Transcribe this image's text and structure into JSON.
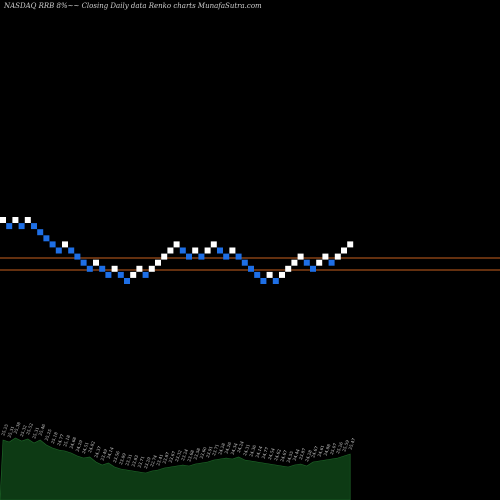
{
  "chart_data": {
    "type": "renko",
    "title": "NASDAQ RRB 8%~~ Closing Daily data Renko charts MunafaSutra.com",
    "xlabel": "",
    "ylabel": "",
    "bricks": [
      {
        "dir": "up",
        "y": 40
      },
      {
        "dir": "down",
        "y": 39
      },
      {
        "dir": "up",
        "y": 40
      },
      {
        "dir": "down",
        "y": 39
      },
      {
        "dir": "up",
        "y": 40
      },
      {
        "dir": "down",
        "y": 39
      },
      {
        "dir": "down",
        "y": 38
      },
      {
        "dir": "down",
        "y": 37
      },
      {
        "dir": "down",
        "y": 36
      },
      {
        "dir": "down",
        "y": 35
      },
      {
        "dir": "up",
        "y": 36
      },
      {
        "dir": "down",
        "y": 35
      },
      {
        "dir": "down",
        "y": 34
      },
      {
        "dir": "down",
        "y": 33
      },
      {
        "dir": "down",
        "y": 32
      },
      {
        "dir": "up",
        "y": 33
      },
      {
        "dir": "down",
        "y": 32
      },
      {
        "dir": "down",
        "y": 31
      },
      {
        "dir": "up",
        "y": 32
      },
      {
        "dir": "down",
        "y": 31
      },
      {
        "dir": "down",
        "y": 30
      },
      {
        "dir": "up",
        "y": 31
      },
      {
        "dir": "up",
        "y": 32
      },
      {
        "dir": "down",
        "y": 31
      },
      {
        "dir": "up",
        "y": 32
      },
      {
        "dir": "up",
        "y": 33
      },
      {
        "dir": "up",
        "y": 34
      },
      {
        "dir": "up",
        "y": 35
      },
      {
        "dir": "up",
        "y": 36
      },
      {
        "dir": "down",
        "y": 35
      },
      {
        "dir": "down",
        "y": 34
      },
      {
        "dir": "up",
        "y": 35
      },
      {
        "dir": "down",
        "y": 34
      },
      {
        "dir": "up",
        "y": 35
      },
      {
        "dir": "up",
        "y": 36
      },
      {
        "dir": "down",
        "y": 35
      },
      {
        "dir": "down",
        "y": 34
      },
      {
        "dir": "up",
        "y": 35
      },
      {
        "dir": "down",
        "y": 34
      },
      {
        "dir": "down",
        "y": 33
      },
      {
        "dir": "down",
        "y": 32
      },
      {
        "dir": "down",
        "y": 31
      },
      {
        "dir": "down",
        "y": 30
      },
      {
        "dir": "up",
        "y": 31
      },
      {
        "dir": "down",
        "y": 30
      },
      {
        "dir": "up",
        "y": 31
      },
      {
        "dir": "up",
        "y": 32
      },
      {
        "dir": "up",
        "y": 33
      },
      {
        "dir": "up",
        "y": 34
      },
      {
        "dir": "down",
        "y": 33
      },
      {
        "dir": "down",
        "y": 32
      },
      {
        "dir": "up",
        "y": 33
      },
      {
        "dir": "up",
        "y": 34
      },
      {
        "dir": "down",
        "y": 33
      },
      {
        "dir": "up",
        "y": 34
      },
      {
        "dir": "up",
        "y": 35
      },
      {
        "dir": "up",
        "y": 36
      }
    ],
    "reference_lines": [
      258,
      270
    ],
    "volume_labels": [
      "25.25",
      "25.31",
      "25.38",
      "25.32",
      "25.52",
      "25.31",
      "25.46",
      "25.25",
      "25.18",
      "24.77",
      "25.18",
      "24.68",
      "24.29",
      "24.51",
      "24.82",
      "24.37",
      "23.49",
      "24.14",
      "23.56",
      "23.89",
      "23.31",
      "23.83",
      "23.71",
      "23.29",
      "22.74",
      "23.41",
      "23.87",
      "23.67",
      "23.32",
      "23.24",
      "23.68",
      "23.58",
      "23.60",
      "23.91",
      "23.71",
      "24.28",
      "24.26",
      "24.34",
      "24.24",
      "24.31",
      "24.36",
      "24.14",
      "24.77",
      "24.54",
      "24.62",
      "24.67",
      "24.55",
      "24.44",
      "23.87",
      "24.28",
      "24.67",
      "24.61",
      "24.88",
      "25.07",
      "25.26",
      "25.59",
      "25.47"
    ],
    "volume_values": [
      60,
      58,
      62,
      59,
      61,
      57,
      60,
      55,
      52,
      50,
      49,
      47,
      44,
      42,
      43,
      38,
      35,
      37,
      33,
      31,
      30,
      29,
      28,
      27,
      29,
      30,
      32,
      33,
      34,
      35,
      34,
      36,
      37,
      38,
      40,
      41,
      42,
      41,
      43,
      40,
      39,
      38,
      37,
      36,
      35,
      34,
      33,
      35,
      36,
      34,
      38,
      39,
      40,
      41,
      42,
      44,
      46
    ],
    "colors": {
      "up": "#ffffff",
      "down": "#1e6fe6",
      "line": "#c8601e",
      "volume": "#0d3a14"
    }
  }
}
